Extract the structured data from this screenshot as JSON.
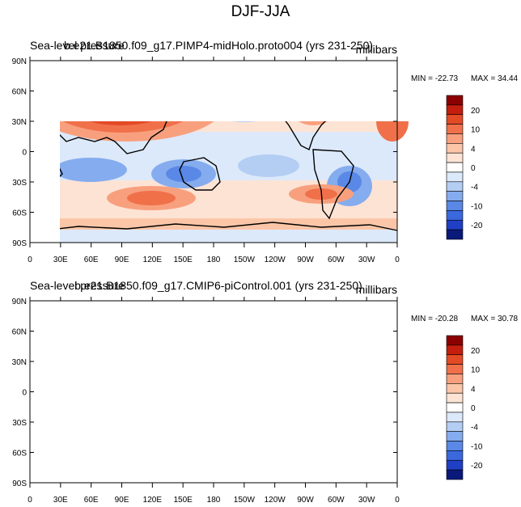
{
  "main_title": "DJF-JJA",
  "panels": [
    {
      "left_label": "Sea-level pressure",
      "center_label": "b.e21.B1850.f09_g17.PIMP4-midHolo.proto004 (yrs 231-250)",
      "units": "millibars",
      "min_label": "MIN = -22.73",
      "max_label": "MAX =  34.44"
    },
    {
      "left_label": "Sea-level pressure",
      "center_label": "b.e21.B1850.f09_g17.CMIP6-piControl.001 (yrs 231-250)",
      "units": "millibars",
      "min_label": "MIN = -20.28",
      "max_label": "MAX =  30.78"
    }
  ],
  "axes": {
    "lat_ticks": [
      "90N",
      "60N",
      "30N",
      "0",
      "30S",
      "60S",
      "90S"
    ],
    "lon_ticks": [
      "0",
      "30E",
      "60E",
      "90E",
      "120E",
      "150E",
      "180",
      "150W",
      "120W",
      "90W",
      "60W",
      "30W",
      "0"
    ]
  },
  "colorbar": {
    "labels": [
      "20",
      "10",
      "4",
      "0",
      "-4",
      "-10",
      "-20"
    ],
    "colors": [
      "#8b0000",
      "#c41e0e",
      "#e34a26",
      "#f0704a",
      "#f8a07e",
      "#fbc6a8",
      "#fde3d4",
      "#ffffff",
      "#dce9fa",
      "#b3cdf3",
      "#85acee",
      "#5a88e6",
      "#3a68dd",
      "#1f3fc4",
      "#0a1a7a"
    ]
  }
}
